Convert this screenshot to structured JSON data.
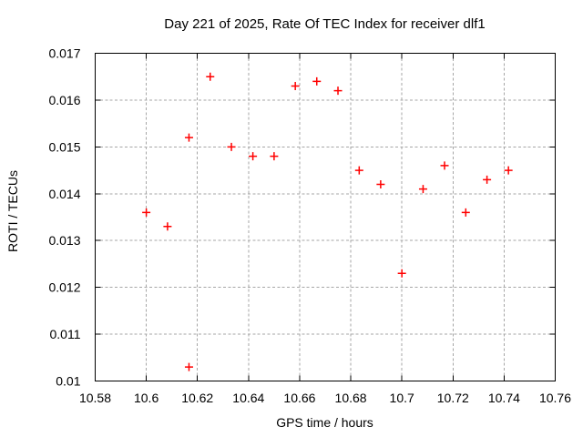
{
  "chart_data": {
    "type": "scatter",
    "title": "Day 221 of 2025, Rate Of TEC Index for receiver dlf1",
    "xlabel": "GPS time / hours",
    "ylabel": "ROTI / TECUs",
    "xlim": [
      10.58,
      10.76
    ],
    "ylim": [
      0.01,
      0.017
    ],
    "xticks": [
      10.58,
      10.6,
      10.62,
      10.64,
      10.66,
      10.68,
      10.7,
      10.72,
      10.74,
      10.76
    ],
    "xtick_labels": [
      "10.58",
      "10.6",
      "10.62",
      "10.64",
      "10.66",
      "10.68",
      "10.7",
      "10.72",
      "10.74",
      "10.76"
    ],
    "yticks": [
      0.01,
      0.011,
      0.012,
      0.013,
      0.014,
      0.015,
      0.016,
      0.017
    ],
    "ytick_labels": [
      "0.01",
      "0.011",
      "0.012",
      "0.013",
      "0.014",
      "0.015",
      "0.016",
      "0.017"
    ],
    "grid": true,
    "legend_position": "none",
    "marker": {
      "shape": "plus",
      "color": "#ff0000",
      "size": 9,
      "stroke_width": 1.5
    },
    "colors": {
      "background": "#ffffff",
      "border": "#000000",
      "grid": "#a6a6a6",
      "text": "#000000"
    },
    "points": [
      {
        "x": 10.6,
        "y": 0.0136
      },
      {
        "x": 10.6083,
        "y": 0.0133
      },
      {
        "x": 10.6167,
        "y": 0.0152
      },
      {
        "x": 10.6167,
        "y": 0.0103
      },
      {
        "x": 10.625,
        "y": 0.0165
      },
      {
        "x": 10.6333,
        "y": 0.015
      },
      {
        "x": 10.6417,
        "y": 0.0148
      },
      {
        "x": 10.65,
        "y": 0.0148
      },
      {
        "x": 10.6583,
        "y": 0.0163
      },
      {
        "x": 10.6667,
        "y": 0.0164
      },
      {
        "x": 10.675,
        "y": 0.0162
      },
      {
        "x": 10.6833,
        "y": 0.0145
      },
      {
        "x": 10.6917,
        "y": 0.0142
      },
      {
        "x": 10.7,
        "y": 0.0123
      },
      {
        "x": 10.7083,
        "y": 0.0141
      },
      {
        "x": 10.7167,
        "y": 0.0146
      },
      {
        "x": 10.725,
        "y": 0.0136
      },
      {
        "x": 10.7333,
        "y": 0.0143
      },
      {
        "x": 10.7417,
        "y": 0.0145
      }
    ]
  }
}
